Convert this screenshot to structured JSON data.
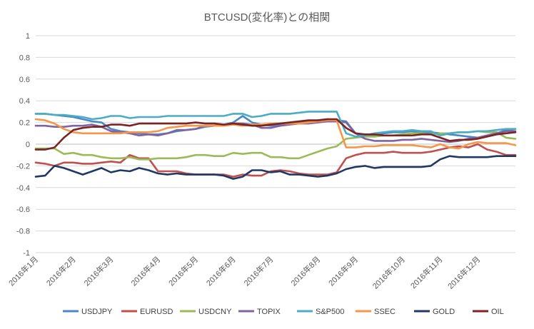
{
  "chart_data": {
    "type": "line",
    "title": "BTCUSD(変化率)との相関",
    "xlabel": "",
    "ylabel": "",
    "ylim": [
      -1,
      1
    ],
    "yticks": [
      "1",
      "0.8",
      "0.6",
      "0.4",
      "0.2",
      "0",
      "-0.2",
      "-0.4",
      "-0.6",
      "-0.8",
      "-1"
    ],
    "grid": "horizontal",
    "legend": "bottom",
    "x": [
      "2016-01-04",
      "2016-01-11",
      "2016-01-18",
      "2016-01-25",
      "2016-02-01",
      "2016-02-08",
      "2016-02-15",
      "2016-02-22",
      "2016-02-29",
      "2016-03-07",
      "2016-03-14",
      "2016-03-21",
      "2016-03-28",
      "2016-04-04",
      "2016-04-11",
      "2016-04-18",
      "2016-04-25",
      "2016-05-02",
      "2016-05-09",
      "2016-05-16",
      "2016-05-23",
      "2016-05-30",
      "2016-06-06",
      "2016-06-13",
      "2016-06-20",
      "2016-06-27",
      "2016-07-04",
      "2016-07-11",
      "2016-07-18",
      "2016-07-25",
      "2016-08-01",
      "2016-08-08",
      "2016-08-15",
      "2016-08-22",
      "2016-08-29",
      "2016-09-05",
      "2016-09-12",
      "2016-09-19",
      "2016-09-26",
      "2016-10-03",
      "2016-10-10",
      "2016-10-17",
      "2016-10-24",
      "2016-10-31",
      "2016-11-07",
      "2016-11-14",
      "2016-11-21",
      "2016-11-28",
      "2016-12-05",
      "2016-12-12",
      "2016-12-19",
      "2016-12-26"
    ],
    "xticks": [
      {
        "label": "2016年1月",
        "at": "2016-01-04"
      },
      {
        "label": "2016年2月",
        "at": "2016-02-01"
      },
      {
        "label": "2016年3月",
        "at": "2016-02-29"
      },
      {
        "label": "2016年4月",
        "at": "2016-04-04"
      },
      {
        "label": "2016年5月",
        "at": "2016-05-02"
      },
      {
        "label": "2016年6月",
        "at": "2016-05-30"
      },
      {
        "label": "2016年7月",
        "at": "2016-06-27"
      },
      {
        "label": "2016年8月",
        "at": "2016-08-01"
      },
      {
        "label": "2016年9月",
        "at": "2016-08-29"
      },
      {
        "label": "2016年10月",
        "at": "2016-10-03"
      },
      {
        "label": "2016年11月",
        "at": "2016-10-31"
      },
      {
        "label": "2016年12月",
        "at": "2016-11-28"
      }
    ],
    "series": [
      {
        "name": "USDJPY",
        "color": "#4a87c4",
        "values": [
          0.28,
          0.28,
          0.27,
          0.26,
          0.25,
          0.23,
          0.21,
          0.2,
          0.14,
          0.12,
          0.11,
          0.1,
          0.09,
          0.09,
          0.1,
          0.12,
          0.13,
          0.14,
          0.16,
          0.17,
          0.18,
          0.2,
          0.26,
          0.2,
          0.18,
          0.17,
          0.18,
          0.19,
          0.2,
          0.21,
          0.22,
          0.23,
          0.22,
          0.21,
          0.1,
          0.08,
          0.08,
          0.1,
          0.11,
          0.11,
          0.12,
          0.11,
          0.11,
          0.1,
          0.09,
          0.08,
          0.07,
          0.06,
          0.08,
          0.1,
          0.13,
          0.14
        ]
      },
      {
        "name": "EURUSD",
        "color": "#c0504d",
        "values": [
          -0.17,
          -0.18,
          -0.2,
          -0.17,
          -0.17,
          -0.18,
          -0.18,
          -0.17,
          -0.16,
          -0.17,
          -0.1,
          -0.13,
          -0.13,
          -0.25,
          -0.25,
          -0.25,
          -0.27,
          -0.28,
          -0.28,
          -0.28,
          -0.28,
          -0.3,
          -0.28,
          -0.29,
          -0.29,
          -0.25,
          -0.24,
          -0.25,
          -0.27,
          -0.28,
          -0.28,
          -0.28,
          -0.26,
          -0.13,
          -0.1,
          -0.08,
          -0.08,
          -0.08,
          -0.07,
          -0.08,
          -0.08,
          -0.08,
          -0.07,
          -0.05,
          -0.03,
          -0.02,
          -0.03,
          0.0,
          -0.05,
          -0.07,
          -0.1,
          -0.1
        ]
      },
      {
        "name": "USDCNY",
        "color": "#9bbb59",
        "values": [
          -0.04,
          -0.04,
          -0.04,
          -0.09,
          -0.08,
          -0.1,
          -0.1,
          -0.12,
          -0.13,
          -0.13,
          -0.12,
          -0.14,
          -0.14,
          -0.13,
          -0.13,
          -0.13,
          -0.12,
          -0.1,
          -0.1,
          -0.11,
          -0.11,
          -0.08,
          -0.09,
          -0.08,
          -0.08,
          -0.12,
          -0.12,
          -0.13,
          -0.13,
          -0.1,
          -0.07,
          -0.04,
          -0.02,
          0.05,
          0.06,
          0.07,
          0.07,
          0.08,
          0.08,
          0.09,
          0.1,
          0.1,
          0.09,
          0.1,
          0.1,
          0.11,
          0.11,
          0.12,
          0.11,
          0.11,
          0.06,
          0.05
        ]
      },
      {
        "name": "TOPIX",
        "color": "#8064a2",
        "values": [
          0.17,
          0.17,
          0.16,
          0.16,
          0.17,
          0.17,
          0.18,
          0.16,
          0.12,
          0.11,
          0.1,
          0.08,
          0.09,
          0.08,
          0.1,
          0.13,
          0.13,
          0.14,
          0.17,
          0.17,
          0.17,
          0.19,
          0.19,
          0.18,
          0.15,
          0.15,
          0.17,
          0.18,
          0.19,
          0.19,
          0.2,
          0.21,
          0.21,
          0.2,
          0.1,
          0.05,
          0.03,
          0.03,
          0.03,
          0.04,
          0.04,
          0.05,
          0.04,
          0.03,
          0.02,
          0.03,
          0.05,
          0.06,
          0.08,
          0.1,
          0.12,
          0.12
        ]
      },
      {
        "name": "S&P500",
        "color": "#4bacc6",
        "values": [
          0.28,
          0.28,
          0.27,
          0.27,
          0.26,
          0.25,
          0.23,
          0.24,
          0.26,
          0.26,
          0.24,
          0.25,
          0.25,
          0.25,
          0.26,
          0.26,
          0.26,
          0.26,
          0.26,
          0.26,
          0.26,
          0.28,
          0.28,
          0.25,
          0.26,
          0.28,
          0.28,
          0.28,
          0.29,
          0.3,
          0.3,
          0.3,
          0.3,
          0.1,
          0.07,
          0.08,
          0.1,
          0.11,
          0.12,
          0.12,
          0.13,
          0.12,
          0.12,
          0.08,
          0.1,
          0.11,
          0.11,
          0.12,
          0.12,
          0.13,
          0.14,
          0.14
        ]
      },
      {
        "name": "SSEC",
        "color": "#f79646",
        "values": [
          0.23,
          0.22,
          0.19,
          0.14,
          0.11,
          0.1,
          0.1,
          0.1,
          0.1,
          0.1,
          0.11,
          0.11,
          0.11,
          0.12,
          0.15,
          0.16,
          0.17,
          0.17,
          0.17,
          0.17,
          0.17,
          0.18,
          0.17,
          0.18,
          0.18,
          0.19,
          0.19,
          0.19,
          0.19,
          0.2,
          0.21,
          0.22,
          0.22,
          -0.03,
          -0.03,
          -0.02,
          -0.02,
          -0.01,
          -0.01,
          -0.01,
          -0.01,
          -0.02,
          -0.03,
          0.0,
          -0.03,
          -0.04,
          0.0,
          0.02,
          0.01,
          0.01,
          0.01,
          -0.01
        ]
      },
      {
        "name": "GOLD",
        "color": "#1f3864",
        "values": [
          -0.3,
          -0.29,
          -0.2,
          -0.22,
          -0.25,
          -0.28,
          -0.25,
          -0.22,
          -0.26,
          -0.24,
          -0.25,
          -0.22,
          -0.24,
          -0.27,
          -0.28,
          -0.27,
          -0.28,
          -0.28,
          -0.28,
          -0.28,
          -0.29,
          -0.32,
          -0.3,
          -0.24,
          -0.24,
          -0.26,
          -0.25,
          -0.28,
          -0.28,
          -0.29,
          -0.3,
          -0.29,
          -0.27,
          -0.23,
          -0.21,
          -0.2,
          -0.22,
          -0.21,
          -0.21,
          -0.21,
          -0.21,
          -0.21,
          -0.2,
          -0.14,
          -0.11,
          -0.12,
          -0.12,
          -0.12,
          -0.12,
          -0.11,
          -0.11,
          -0.11
        ]
      },
      {
        "name": "OIL",
        "color": "#7b2424",
        "values": [
          -0.05,
          -0.05,
          -0.03,
          0.06,
          0.13,
          0.15,
          0.16,
          0.16,
          0.18,
          0.18,
          0.17,
          0.19,
          0.19,
          0.19,
          0.19,
          0.19,
          0.19,
          0.2,
          0.19,
          0.19,
          0.18,
          0.19,
          0.18,
          0.17,
          0.17,
          0.18,
          0.19,
          0.2,
          0.21,
          0.22,
          0.22,
          0.23,
          0.23,
          0.15,
          0.1,
          0.09,
          0.09,
          0.08,
          0.08,
          0.08,
          0.08,
          0.09,
          0.09,
          0.06,
          0.03,
          0.04,
          0.04,
          0.05,
          0.07,
          0.09,
          0.1,
          0.11
        ]
      }
    ]
  }
}
